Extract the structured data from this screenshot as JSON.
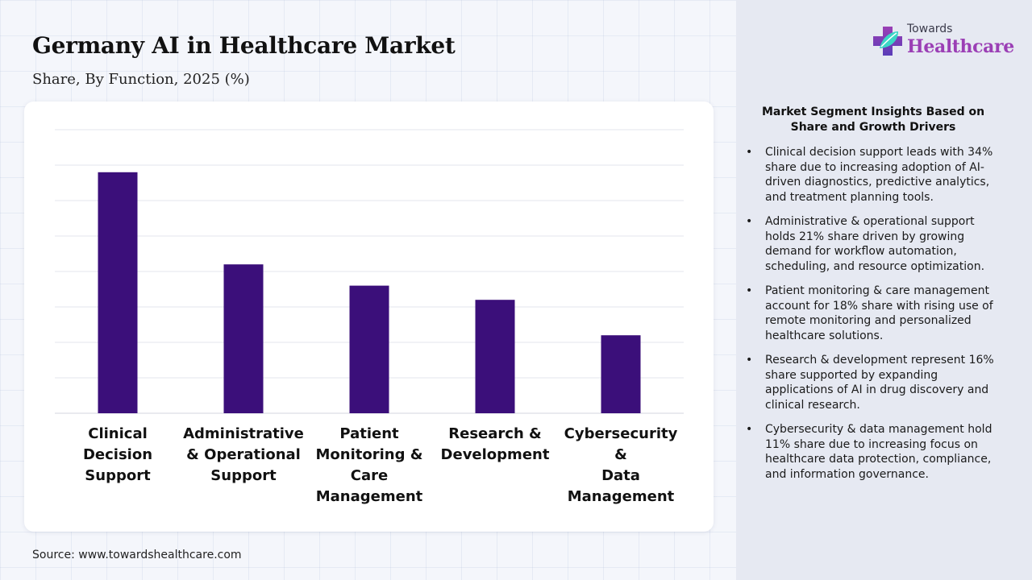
{
  "header": {
    "title": "Germany AI in Healthcare Market",
    "subtitle": "Share, By Function, 2025 (%)"
  },
  "chart_data": {
    "type": "bar",
    "title": "Germany AI in Healthcare Market",
    "subtitle": "Share, By Function, 2025 (%)",
    "categories": [
      "Clinical Decision Support",
      "Administrative & Operational Support",
      "Patient Monitoring & Care Management",
      "Research & Development",
      "Cybersecurity & Data Management"
    ],
    "category_lines": [
      [
        "Clinical",
        "Decision",
        "Support"
      ],
      [
        "Administrative",
        "& Operational",
        "Support"
      ],
      [
        "Patient",
        "Monitoring &",
        "Care",
        "Management"
      ],
      [
        "Research &",
        "Development"
      ],
      [
        "Cybersecurity &",
        "Data",
        "Management"
      ]
    ],
    "values": [
      34,
      21,
      18,
      16,
      11
    ],
    "xlabel": "",
    "ylabel": "",
    "ylim": [
      0,
      40
    ],
    "grid": true,
    "bar_color": "#3b0f7a"
  },
  "source": "Source: www.towardshealthcare.com",
  "brand": {
    "line1": "Towards",
    "line2": "Healthcare",
    "logo_icon": "cross-leaf-icon",
    "colors": {
      "top": "#9b3fb5",
      "bottom": "#5a3db8",
      "accent": "#3bd6c6"
    }
  },
  "insights": {
    "heading": "Market Segment Insights Based on Share and Growth Drivers",
    "items": [
      "Clinical decision support leads with 34% share due to increasing adoption of AI-driven diagnostics, predictive analytics, and treatment planning tools.",
      "Administrative & operational support holds 21% share driven by growing demand for workflow automation, scheduling, and resource optimization.",
      "Patient monitoring & care management account for 18% share with rising use of remote monitoring and personalized healthcare solutions.",
      "Research & development represent 16% share supported by expanding applications of AI in drug discovery and clinical research.",
      "Cybersecurity & data management hold 11% share due to increasing focus on healthcare data protection, compliance, and information governance."
    ]
  }
}
